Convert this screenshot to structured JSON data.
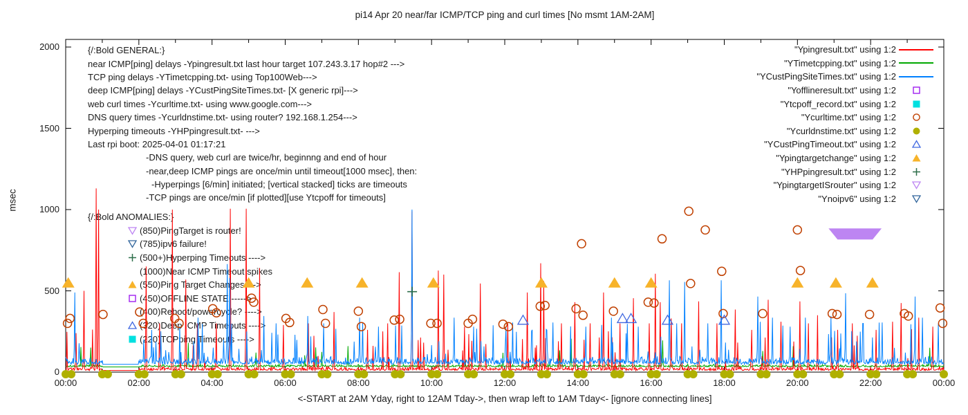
{
  "title": "pi14 Apr 20  near/far ICMP/TCP ping and curl times [No msmt 1AM-2AM]",
  "axes": {
    "ylabel": "msec",
    "yticks": [
      0,
      500,
      1000,
      1500,
      2000
    ],
    "xtick_labels": [
      "00:00",
      "02:00",
      "04:00",
      "06:00",
      "08:00",
      "10:00",
      "12:00",
      "14:00",
      "16:00",
      "18:00",
      "20:00",
      "22:00",
      "00:00"
    ],
    "xcaption": "<-START at 2AM Yday, right to 12AM Tday->, then wrap left to 1AM Tday<- [ignore connecting lines]"
  },
  "legend": {
    "items": [
      {
        "label": "\"Ypingresult.txt\" using 1:2",
        "sample": "line",
        "color": "#ff0000"
      },
      {
        "label": "\"YTimetcpping.txt\" using 1:2",
        "sample": "line",
        "color": "#00a800"
      },
      {
        "label": "\"YCustPingSiteTimes.txt\" using 1:2",
        "sample": "line",
        "color": "#0080ff"
      },
      {
        "label": "\"Yofflineresult.txt\" using 1:2",
        "sample": "sq-open",
        "color": "#a020f0"
      },
      {
        "label": "\"Ytcpoff_record.txt\" using 1:2",
        "sample": "sq-fill",
        "color": "#00e0e0"
      },
      {
        "label": "\"Ycurltime.txt\" using 1:2",
        "sample": "circ-open",
        "color": "#c04000"
      },
      {
        "label": "\"Ycurldnstime.txt\" using 1:2",
        "sample": "circ-fill",
        "color": "#b0b000"
      },
      {
        "label": "\"YCustPingTimeout.txt\" using 1:2",
        "sample": "tri-open",
        "color": "#4169e1"
      },
      {
        "label": "\"Ypingtargetchange\" using 1:2",
        "sample": "tri-fill",
        "color": "#f7b32a"
      },
      {
        "label": "\"YHPpingresult.txt\" using 1:2",
        "sample": "plus",
        "color": "#2c6e49"
      },
      {
        "label": "\"YpingtargetISrouter\" using 1:2",
        "sample": "tridown-open",
        "color": "#bd85f2"
      },
      {
        "label": "\"Ynoipv6\" using 1:2",
        "sample": "tridown-open",
        "color": "#31659c"
      }
    ]
  },
  "general": {
    "lines": [
      {
        "t": "{/:Bold GENERAL:}",
        "ind": 0
      },
      {
        "t": "near ICMP[ping] delays -Ypingresult.txt last hour target 107.243.3.17 hop#2 --->",
        "ind": 0
      },
      {
        "t": "TCP ping delays -YTimetcpping.txt- using Top100Web--->",
        "ind": 0
      },
      {
        "t": "deep ICMP[ping] delays -YCustPingSiteTimes.txt- [X generic rpi]--->",
        "ind": 0
      },
      {
        "t": "web curl times -Ycurltime.txt- using www.google.com--->",
        "ind": 0
      },
      {
        "t": "DNS query times -Ycurldnstime.txt- using router? 192.168.1.254--->",
        "ind": 0
      },
      {
        "t": "Hyperping timeouts -YHPpingresult.txt- --->",
        "ind": 0
      },
      {
        "t": "Last rpi boot: 2025-04-01 01:17:21",
        "ind": 0
      },
      {
        "t": "-DNS query, web curl are twice/hr, beginnng and end of hour",
        "ind": 1
      },
      {
        "t": "-near,deep ICMP pings are once/min until timeout[1000 msec], then:",
        "ind": 1
      },
      {
        "t": "-Hyperpings [6/min] initiated; [vertical stacked] ticks are timeouts",
        "ind": 2
      },
      {
        "t": "-TCP pings are once/min [if plotted][use Ytcpoff for timeouts]",
        "ind": 1
      }
    ]
  },
  "anomalies": {
    "heading": "{/:Bold ANOMALIES:}",
    "items": [
      {
        "glyph": "tridown-open",
        "color": "#bd85f2",
        "text": "(850)PingTarget is router!"
      },
      {
        "glyph": "tridown-open",
        "color": "#31659c",
        "text": "(785)ipv6 failure!"
      },
      {
        "glyph": "plus",
        "color": "#2c6e49",
        "text": "(500+)Hyperping Timeouts ---->"
      },
      {
        "glyph": null,
        "color": null,
        "text": "(1000)Near ICMP Timeout spikes"
      },
      {
        "glyph": "tri-fill",
        "color": "#f7b32a",
        "text": "(550)Ping Target Changes --->"
      },
      {
        "glyph": "sq-open",
        "color": "#a020f0",
        "text": "(450)OFFLINE STATE ----->"
      },
      {
        "glyph": null,
        "color": null,
        "text": "(400)Reboot/powercycle? ---->"
      },
      {
        "glyph": "tri-open",
        "color": "#4169e1",
        "text": "(320)Deep ICMP Timeouts ---->"
      },
      {
        "glyph": "sq-fill",
        "color": "#00e0e0",
        "text": "(220)TCPping Timeouts ---->"
      }
    ]
  },
  "chart_data": {
    "type": "line",
    "title": "pi14 Apr 20  near/far ICMP/TCP ping and curl times [No msmt 1AM-2AM]",
    "xlabel": "<-START at 2AM Yday, right to 12AM Tday->, then wrap left to 1AM Tday<- [ignore connecting lines]",
    "ylabel": "msec",
    "xlim": [
      0,
      24
    ],
    "ylim": [
      0,
      2045
    ],
    "grid": false,
    "legend_position": "top-right",
    "no_measurement_window_hours": [
      1,
      2
    ],
    "seed": 14,
    "sample_minutes": 1440,
    "series": [
      {
        "name": "YTimetcpping.txt",
        "color": "#00a800",
        "base": 32,
        "noise": 14,
        "spike_prob": 0.006,
        "spike_min": 70,
        "spike_max": 160,
        "spikes": [
          [
            3.35,
            180
          ],
          [
            5.2,
            120
          ],
          [
            7.72,
            160
          ],
          [
            10.45,
            120
          ],
          [
            13.82,
            205
          ],
          [
            16.32,
            195
          ],
          [
            19.05,
            130
          ],
          [
            23.62,
            150
          ]
        ]
      },
      {
        "name": "Ypingresult.txt",
        "color": "#ff0000",
        "base": 10,
        "noise": 22,
        "spike_prob": 0.028,
        "spike_min": 60,
        "spike_max": 280,
        "spikes": [
          [
            0.28,
            240
          ],
          [
            0.5,
            500
          ],
          [
            0.83,
            1130
          ],
          [
            0.9,
            1000
          ],
          [
            2.2,
            650
          ],
          [
            2.57,
            300
          ],
          [
            2.92,
            1000
          ],
          [
            3.28,
            570
          ],
          [
            3.6,
            300
          ],
          [
            4.12,
            300
          ],
          [
            4.5,
            1005
          ],
          [
            4.93,
            1005
          ],
          [
            5.3,
            640
          ],
          [
            5.95,
            290
          ],
          [
            6.63,
            300
          ],
          [
            7.33,
            370
          ],
          [
            8.25,
            260
          ],
          [
            8.8,
            300
          ],
          [
            9.12,
            615
          ],
          [
            9.47,
            990
          ],
          [
            10.18,
            625
          ],
          [
            10.33,
            600
          ],
          [
            10.9,
            280
          ],
          [
            11.33,
            545
          ],
          [
            12.08,
            300
          ],
          [
            12.62,
            490
          ],
          [
            12.98,
            670
          ],
          [
            13.07,
            560
          ],
          [
            13.55,
            300
          ],
          [
            13.92,
            430
          ],
          [
            14.33,
            300
          ],
          [
            14.7,
            490
          ],
          [
            15.15,
            300
          ],
          [
            15.52,
            455
          ],
          [
            15.95,
            300
          ],
          [
            16.12,
            605
          ],
          [
            16.25,
            430
          ],
          [
            16.55,
            330
          ],
          [
            16.83,
            300
          ],
          [
            17.3,
            435
          ],
          [
            17.8,
            300
          ],
          [
            18.3,
            385
          ],
          [
            18.75,
            260
          ],
          [
            19.2,
            445
          ],
          [
            19.55,
            310
          ],
          [
            20.07,
            435
          ],
          [
            20.3,
            300
          ],
          [
            20.55,
            350
          ],
          [
            21.1,
            260
          ],
          [
            21.5,
            300
          ],
          [
            22.15,
            260
          ],
          [
            22.6,
            310
          ],
          [
            22.83,
            425
          ],
          [
            23.32,
            335
          ],
          [
            23.7,
            280
          ]
        ]
      },
      {
        "name": "YCustPingSiteTimes.txt",
        "color": "#0080ff",
        "base": 48,
        "noise": 42,
        "spike_prob": 0.06,
        "spike_min": 110,
        "spike_max": 310,
        "spikes": [
          [
            0.25,
            490
          ],
          [
            2.35,
            260
          ],
          [
            3.62,
            335
          ],
          [
            4.42,
            665
          ],
          [
            4.48,
            580
          ],
          [
            5.42,
            345
          ],
          [
            5.75,
            300
          ],
          [
            6.62,
            345
          ],
          [
            7.05,
            300
          ],
          [
            8.03,
            335
          ],
          [
            8.12,
            305
          ],
          [
            8.55,
            280
          ],
          [
            9.47,
            1000
          ],
          [
            10.62,
            335
          ],
          [
            11.15,
            280
          ],
          [
            12.22,
            305
          ],
          [
            12.75,
            260
          ],
          [
            13.32,
            305
          ],
          [
            14.22,
            280
          ],
          [
            14.92,
            335
          ],
          [
            15.65,
            280
          ],
          [
            16.5,
            565
          ],
          [
            16.7,
            300
          ],
          [
            16.92,
            555
          ],
          [
            17.55,
            300
          ],
          [
            17.92,
            565
          ],
          [
            18.92,
            465
          ],
          [
            19.32,
            335
          ],
          [
            19.8,
            280
          ],
          [
            20.22,
            335
          ],
          [
            20.92,
            345
          ],
          [
            21.32,
            485
          ],
          [
            21.8,
            300
          ],
          [
            22.32,
            305
          ],
          [
            23.22,
            465
          ],
          [
            23.42,
            335
          ],
          [
            23.85,
            300
          ]
        ]
      }
    ],
    "markers": [
      {
        "name": "Ycurltime.txt",
        "symbol": "circ-open",
        "color": "#c04000",
        "points": [
          [
            0.05,
            300
          ],
          [
            0.12,
            330
          ],
          [
            1.02,
            355
          ],
          [
            2.02,
            370
          ],
          [
            2.12,
            300
          ],
          [
            2.98,
            330
          ],
          [
            3.1,
            300
          ],
          [
            4.02,
            390
          ],
          [
            4.12,
            365
          ],
          [
            5.08,
            455
          ],
          [
            5.14,
            430
          ],
          [
            6.02,
            330
          ],
          [
            6.12,
            305
          ],
          [
            7.03,
            385
          ],
          [
            7.1,
            300
          ],
          [
            8.0,
            375
          ],
          [
            8.08,
            280
          ],
          [
            8.98,
            320
          ],
          [
            9.13,
            325
          ],
          [
            9.98,
            300
          ],
          [
            10.15,
            300
          ],
          [
            11.0,
            300
          ],
          [
            11.12,
            325
          ],
          [
            11.95,
            295
          ],
          [
            12.1,
            280
          ],
          [
            12.97,
            405
          ],
          [
            13.1,
            410
          ],
          [
            13.95,
            390
          ],
          [
            14.1,
            790
          ],
          [
            14.14,
            350
          ],
          [
            14.97,
            375
          ],
          [
            15.92,
            430
          ],
          [
            16.08,
            425
          ],
          [
            16.3,
            820
          ],
          [
            17.03,
            990
          ],
          [
            17.08,
            545
          ],
          [
            17.48,
            875
          ],
          [
            17.93,
            620
          ],
          [
            17.97,
            360
          ],
          [
            19.05,
            360
          ],
          [
            20.0,
            875
          ],
          [
            20.08,
            625
          ],
          [
            20.95,
            360
          ],
          [
            21.08,
            355
          ],
          [
            21.97,
            355
          ],
          [
            22.92,
            360
          ],
          [
            23.03,
            345
          ],
          [
            23.9,
            395
          ],
          [
            23.97,
            300
          ]
        ]
      },
      {
        "name": "Ycurldnstime.txt",
        "symbol": "circ-fill",
        "color": "#b0b000",
        "points_rule": "pairs at every hour 00..24 at value 0 (twice/hr)"
      },
      {
        "name": "YCustPingTimeout.txt",
        "symbol": "tri-open",
        "color": "#4169e1",
        "points": [
          [
            12.5,
            320
          ],
          [
            15.22,
            330
          ],
          [
            15.45,
            330
          ],
          [
            16.45,
            320
          ],
          [
            18.0,
            320
          ]
        ]
      },
      {
        "name": "Ypingtargetchange",
        "symbol": "tri-fill",
        "color": "#f7b32a",
        "points": [
          [
            0.07,
            550
          ],
          [
            5.0,
            550
          ],
          [
            6.6,
            550
          ],
          [
            8.1,
            550
          ],
          [
            10.05,
            550
          ],
          [
            13.0,
            550
          ],
          [
            15.0,
            550
          ],
          [
            16.0,
            550
          ],
          [
            20.0,
            550
          ],
          [
            21.05,
            550
          ],
          [
            22.05,
            550
          ]
        ]
      },
      {
        "name": "YHPpingresult.txt",
        "symbol": "plus",
        "color": "#2c6e49",
        "points": [
          [
            9.47,
            495
          ]
        ]
      },
      {
        "name": "YpingtargetISrouter",
        "symbol": "band-tridown-fill",
        "color": "#bd85f2",
        "band": {
          "from": 20.85,
          "to": 22.3,
          "value": 850
        }
      }
    ]
  }
}
